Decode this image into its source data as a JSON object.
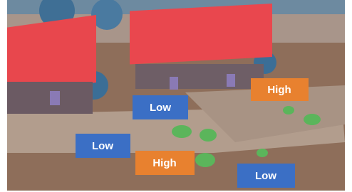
{
  "labels": [
    "High",
    "Low",
    "Low",
    "High",
    "Low"
  ]
}
